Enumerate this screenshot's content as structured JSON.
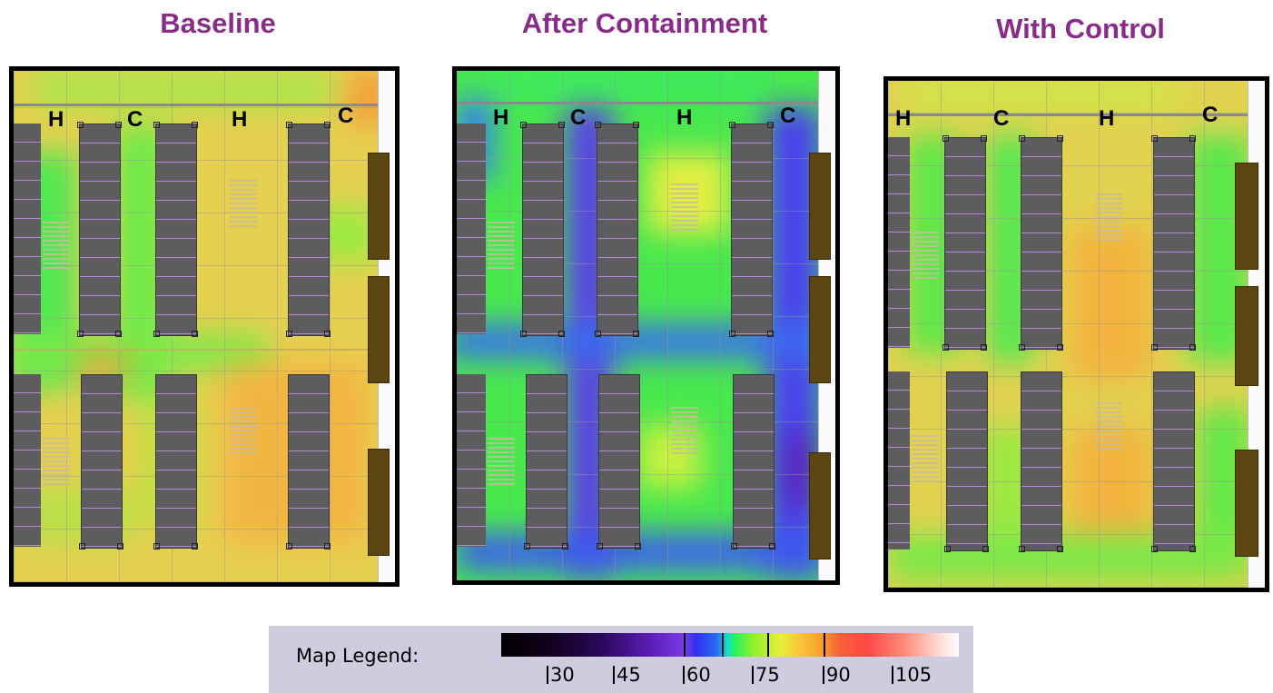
{
  "panels": [
    {
      "title": "Baseline",
      "aisles": [
        "H",
        "C",
        "H",
        "C"
      ]
    },
    {
      "title": "After Containment",
      "aisles": [
        "H",
        "C",
        "H",
        "C"
      ]
    },
    {
      "title": "With Control",
      "aisles": [
        "H",
        "C",
        "H",
        "C"
      ]
    }
  ],
  "legend": {
    "label": "Map Legend:",
    "ticks": [
      "30",
      "45",
      "60",
      "75",
      "90",
      "105"
    ]
  },
  "colors": {
    "title": "#8a2b8a",
    "warm_yellow": "#e6d050",
    "green": "#4ee84a",
    "blue_purple": "#4a40e8",
    "rack": "#5d5d60",
    "door": "#5b4510"
  }
}
